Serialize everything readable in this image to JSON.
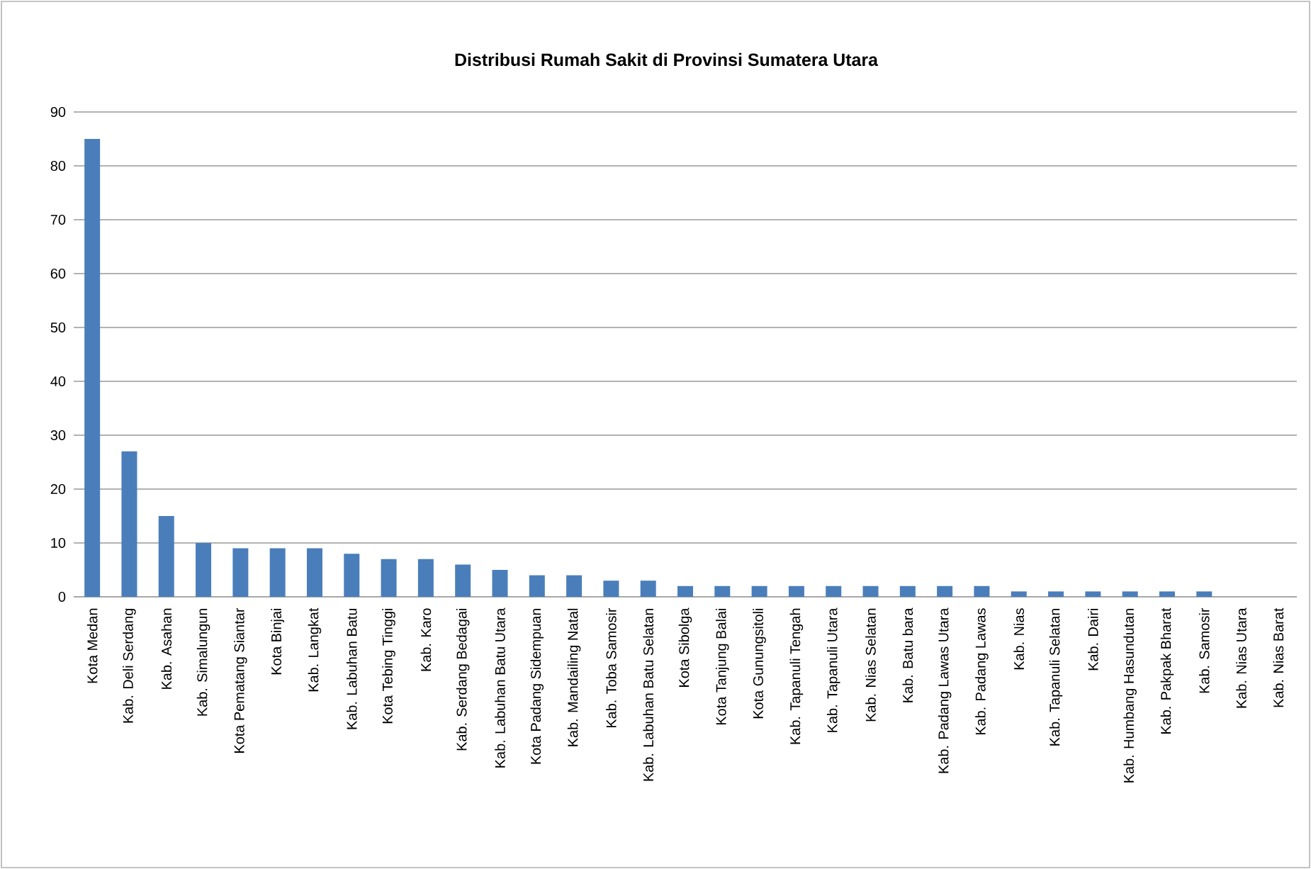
{
  "chart_data": {
    "type": "bar",
    "title": "Distribusi Rumah Sakit di Provinsi Sumatera Utara",
    "categories": [
      "Kota Medan",
      "Kab. Deli Serdang",
      "Kab. Asahan",
      "Kab. Simalungun",
      "Kota Pematang Siantar",
      "Kota Binjai",
      "Kab. Langkat",
      "Kab. Labuhan Batu",
      "Kota Tebing Tinggi",
      "Kab. Karo",
      "Kab. Serdang Bedagai",
      "Kab. Labuhan Batu Utara",
      "Kota Padang Sidempuan",
      "Kab. Mandailing Natal",
      "Kab. Toba Samosir",
      "Kab. Labuhan Batu Selatan",
      "Kota Sibolga",
      "Kota Tanjung Balai",
      "Kota Gunungsitoli",
      "Kab. Tapanuli Tengah",
      "Kab. Tapanuli Utara",
      "Kab. Nias Selatan",
      "Kab. Batu bara",
      "Kab. Padang Lawas Utara",
      "Kab. Padang Lawas",
      "Kab. Nias",
      "Kab. Tapanuli Selatan",
      "Kab. Dairi",
      "Kab. Humbang Hasundutan",
      "Kab. Pakpak Bharat",
      "Kab. Samosir",
      "Kab. Nias Utara",
      "Kab. Nias Barat"
    ],
    "values": [
      85,
      27,
      15,
      10,
      9,
      9,
      9,
      8,
      7,
      7,
      6,
      5,
      4,
      4,
      3,
      3,
      2,
      2,
      2,
      2,
      2,
      2,
      2,
      2,
      2,
      1,
      1,
      1,
      1,
      1,
      1,
      0,
      0
    ],
    "color": "#4a7ebb",
    "ylim": [
      0,
      90
    ],
    "yticks": [
      0,
      10,
      20,
      30,
      40,
      50,
      60,
      70,
      80,
      90
    ],
    "grid": "y"
  }
}
